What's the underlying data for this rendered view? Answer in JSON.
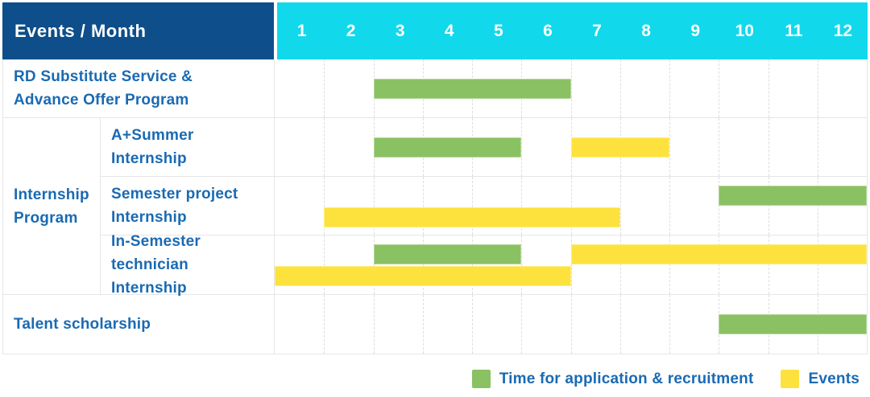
{
  "header": {
    "label": "Events / Month",
    "months": [
      "1",
      "2",
      "3",
      "4",
      "5",
      "6",
      "7",
      "8",
      "9",
      "10",
      "11",
      "12"
    ]
  },
  "group": {
    "label": "Internship Program",
    "label_lines": [
      "Internship",
      "Program"
    ]
  },
  "rows": [
    {
      "label": "RD Substitute Service & Advance Offer Program",
      "label_lines": [
        "RD Substitute Service &",
        "Advance Offer Program"
      ],
      "lines": 1,
      "bars": [
        {
          "color": "green",
          "start": 3,
          "end": 6,
          "line": 0
        }
      ]
    },
    {
      "label": "A+Summer Internship",
      "label_lines": [
        "A+Summer",
        "Internship"
      ],
      "lines": 1,
      "bars": [
        {
          "color": "green",
          "start": 3,
          "end": 5,
          "line": 0
        },
        {
          "color": "yellow",
          "start": 7,
          "end": 8,
          "line": 0
        }
      ]
    },
    {
      "label": "Semester project Internship",
      "label_lines": [
        "Semester project",
        "Internship"
      ],
      "lines": 2,
      "bars": [
        {
          "color": "green",
          "start": 10,
          "end": 12,
          "line": 0
        },
        {
          "color": "yellow",
          "start": 2,
          "end": 7,
          "line": 1
        }
      ]
    },
    {
      "label": "In-Semester technician Internship",
      "label_lines": [
        "In-Semester",
        "technician Internship"
      ],
      "lines": 2,
      "bars": [
        {
          "color": "green",
          "start": 3,
          "end": 5,
          "line": 0
        },
        {
          "color": "yellow",
          "start": 7,
          "end": 12,
          "line": 0
        },
        {
          "color": "yellow",
          "start": 1,
          "end": 6,
          "line": 1
        }
      ]
    },
    {
      "label": "Talent scholarship",
      "label_lines": [
        "Talent scholarship"
      ],
      "lines": 1,
      "bars": [
        {
          "color": "green",
          "start": 10,
          "end": 12,
          "line": 0
        }
      ]
    }
  ],
  "legend": [
    {
      "color": "green",
      "label": "Time for application & recruitment"
    },
    {
      "color": "yellow",
      "label": "Events"
    }
  ],
  "colors": {
    "navy": "#0e4e8a",
    "cyan": "#12d8ec",
    "text": "#1a6ab3",
    "green": "#8ac163",
    "yellow": "#fde23e",
    "grid": "#dedede",
    "border": "#e6e6e6"
  },
  "chart_data": {
    "type": "gantt",
    "title": "Events / Month",
    "x_axis": {
      "label": "Month",
      "ticks": [
        1,
        2,
        3,
        4,
        5,
        6,
        7,
        8,
        9,
        10,
        11,
        12
      ],
      "range": [
        1,
        12
      ],
      "grid": true
    },
    "legend_position": "bottom-right",
    "tasks": [
      {
        "name": "RD Substitute Service & Advance Offer Program",
        "group": null,
        "segments": [
          {
            "kind": "Time for application & recruitment",
            "months": [
              3,
              6
            ]
          }
        ]
      },
      {
        "name": "A+Summer Internship",
        "group": "Internship Program",
        "segments": [
          {
            "kind": "Time for application & recruitment",
            "months": [
              3,
              5
            ]
          },
          {
            "kind": "Events",
            "months": [
              7,
              8
            ]
          }
        ]
      },
      {
        "name": "Semester project Internship",
        "group": "Internship Program",
        "segments": [
          {
            "kind": "Time for application & recruitment",
            "months": [
              10,
              12
            ]
          },
          {
            "kind": "Events",
            "months": [
              2,
              7
            ]
          }
        ]
      },
      {
        "name": "In-Semester technician Internship",
        "group": "Internship Program",
        "segments": [
          {
            "kind": "Time for application & recruitment",
            "months": [
              3,
              5
            ]
          },
          {
            "kind": "Events",
            "months": [
              7,
              12
            ]
          },
          {
            "kind": "Events",
            "months": [
              1,
              6
            ]
          }
        ]
      },
      {
        "name": "Talent scholarship",
        "group": null,
        "segments": [
          {
            "kind": "Time for application & recruitment",
            "months": [
              10,
              12
            ]
          }
        ]
      }
    ],
    "legend": [
      {
        "swatch_color": "#8ac163",
        "label": "Time for application & recruitment"
      },
      {
        "swatch_color": "#fde23e",
        "label": "Events"
      }
    ]
  }
}
